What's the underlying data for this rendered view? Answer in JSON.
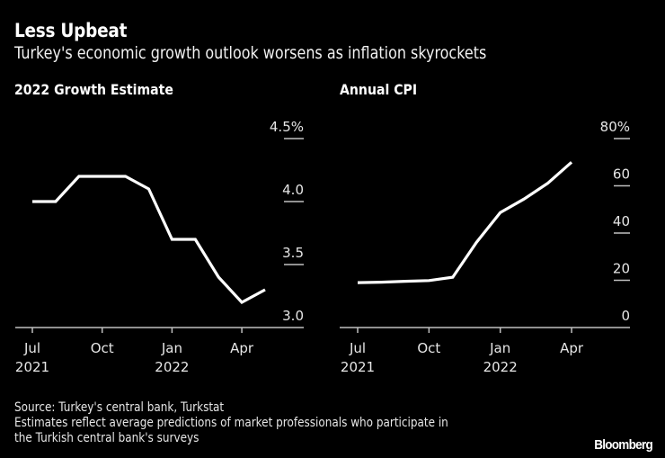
{
  "header": {
    "title": "Less Upbeat",
    "subtitle": "Turkey's economic growth outlook worsens as inflation skyrockets"
  },
  "footer": {
    "source": "Source: Turkey's central bank, Turkstat",
    "note_line1": "Estimates reflect average predictions of market professionals who participate in",
    "note_line2": "the Turkish central bank's surveys",
    "brand": "Bloomberg"
  },
  "colors": {
    "background": "#000000",
    "line": "#ffffff",
    "grid": "#bfbfbf",
    "axis": "#bfbfbf"
  },
  "chart_data": [
    {
      "type": "line",
      "title": "2022 Growth Estimate",
      "x": [
        "2021-07",
        "2021-08",
        "2021-09",
        "2021-10",
        "2021-11",
        "2021-12",
        "2022-01",
        "2022-02",
        "2022-03",
        "2022-04",
        "2022-05"
      ],
      "series": [
        {
          "name": "2022 Growth Estimate",
          "values": [
            4.0,
            4.0,
            4.2,
            4.2,
            4.2,
            4.1,
            3.7,
            3.7,
            3.4,
            3.2,
            3.3
          ]
        }
      ],
      "ylim": [
        3.0,
        4.5
      ],
      "yticks": [
        3.0,
        3.5,
        4.0,
        4.5
      ],
      "ytick_labels": [
        "3.0",
        "3.5",
        "4.0",
        "4.5%"
      ],
      "xticks": [
        {
          "x": "2021-07",
          "label": "Jul",
          "sublabel": "2021"
        },
        {
          "x": "2021-10",
          "label": "Oct",
          "sublabel": ""
        },
        {
          "x": "2022-01",
          "label": "Jan",
          "sublabel": "2022"
        },
        {
          "x": "2022-04",
          "label": "Apr",
          "sublabel": ""
        }
      ],
      "xlabel": "",
      "ylabel": "",
      "grid": true,
      "y_axis_side": "right"
    },
    {
      "type": "line",
      "title": "Annual CPI",
      "x": [
        "2021-07",
        "2021-08",
        "2021-09",
        "2021-10",
        "2021-11",
        "2021-12",
        "2022-01",
        "2022-02",
        "2022-03",
        "2022-04"
      ],
      "series": [
        {
          "name": "Annual CPI",
          "values": [
            19.0,
            19.2,
            19.6,
            19.9,
            21.3,
            36.1,
            48.7,
            54.4,
            61.1,
            70.0
          ]
        }
      ],
      "ylim": [
        0,
        80
      ],
      "yticks": [
        0,
        20,
        40,
        60,
        80
      ],
      "ytick_labels": [
        "0",
        "20",
        "40",
        "60",
        "80%"
      ],
      "xticks": [
        {
          "x": "2021-07",
          "label": "Jul",
          "sublabel": "2021"
        },
        {
          "x": "2021-10",
          "label": "Oct",
          "sublabel": ""
        },
        {
          "x": "2022-01",
          "label": "Jan",
          "sublabel": "2022"
        },
        {
          "x": "2022-04",
          "label": "Apr",
          "sublabel": ""
        }
      ],
      "xlabel": "",
      "ylabel": "",
      "grid": true,
      "y_axis_side": "right"
    }
  ]
}
